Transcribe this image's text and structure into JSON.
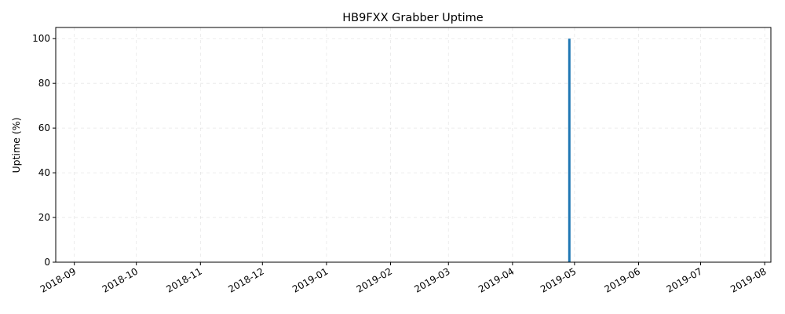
{
  "chart_data": {
    "type": "bar",
    "title": "HB9FXX Grabber Uptime",
    "xlabel": "",
    "ylabel": "Uptime (%)",
    "x_axis_type": "date",
    "xlim": [
      "2018-08-23",
      "2019-08-04"
    ],
    "ylim": [
      0,
      105
    ],
    "x_ticks": [
      "2018-09",
      "2018-10",
      "2018-11",
      "2018-12",
      "2019-01",
      "2019-02",
      "2019-03",
      "2019-04",
      "2019-05",
      "2019-06",
      "2019-07",
      "2019-08"
    ],
    "y_ticks": [
      0,
      20,
      40,
      60,
      80,
      100
    ],
    "grid": true,
    "bar_color": "#1f77b4",
    "series": [
      {
        "x": [
          "2019-04-28"
        ],
        "values": [
          100
        ]
      }
    ]
  }
}
